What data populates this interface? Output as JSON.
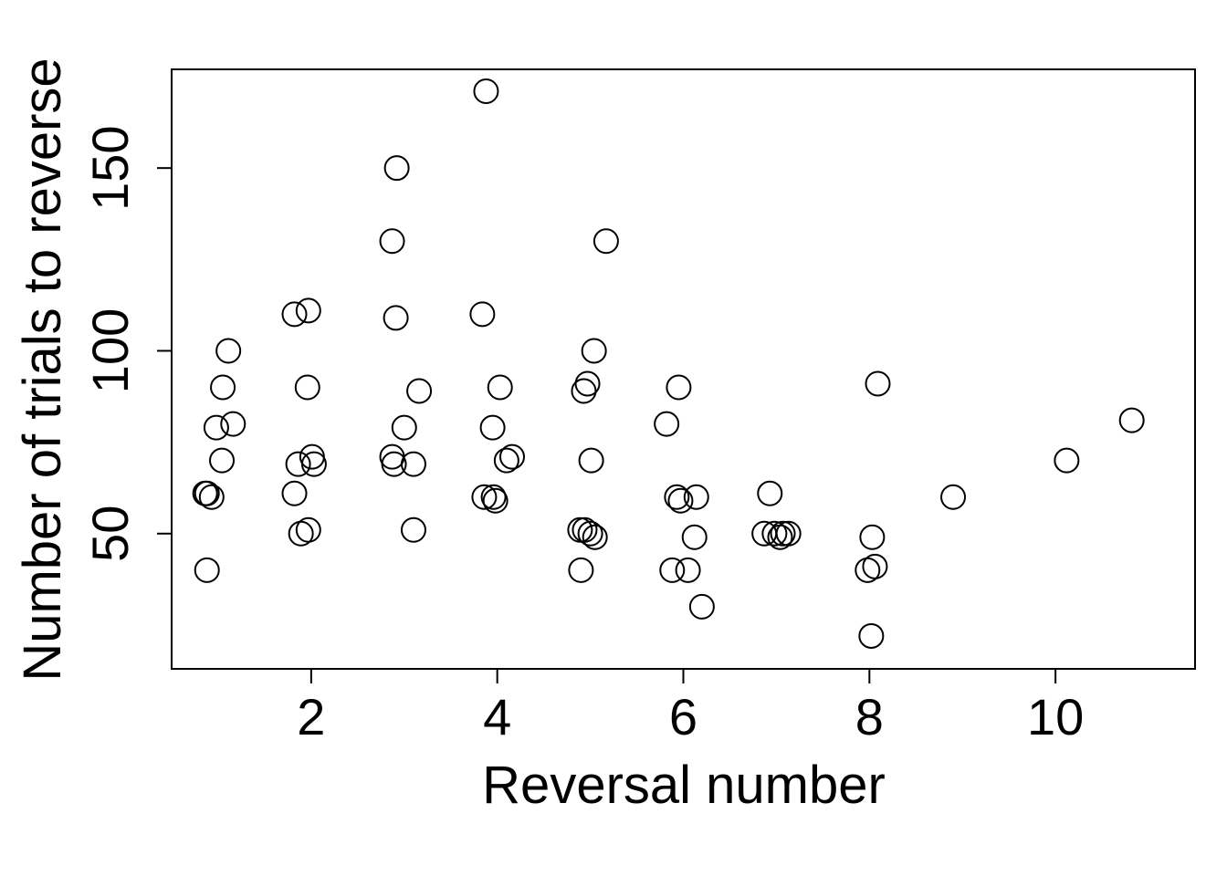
{
  "chart_data": {
    "type": "scatter",
    "title": "",
    "xlabel": "Reversal number",
    "ylabel": "Number of trials to reverse",
    "xlim": [
      0.5,
      11.5
    ],
    "ylim": [
      13,
      177
    ],
    "xticks": [
      2,
      4,
      6,
      8,
      10
    ],
    "yticks": [
      50,
      100,
      150
    ],
    "grid": false,
    "legend": "none",
    "marker": "open-circle",
    "points": [
      {
        "x": 0.86,
        "y": 61
      },
      {
        "x": 0.88,
        "y": 61
      },
      {
        "x": 0.93,
        "y": 60
      },
      {
        "x": 0.98,
        "y": 79
      },
      {
        "x": 1.04,
        "y": 70
      },
      {
        "x": 1.05,
        "y": 90
      },
      {
        "x": 1.11,
        "y": 100
      },
      {
        "x": 1.16,
        "y": 80
      },
      {
        "x": 0.88,
        "y": 40
      },
      {
        "x": 1.82,
        "y": 110
      },
      {
        "x": 1.82,
        "y": 61
      },
      {
        "x": 1.86,
        "y": 69
      },
      {
        "x": 1.89,
        "y": 50
      },
      {
        "x": 1.96,
        "y": 90
      },
      {
        "x": 1.97,
        "y": 111
      },
      {
        "x": 1.97,
        "y": 51
      },
      {
        "x": 2.01,
        "y": 71
      },
      {
        "x": 2.03,
        "y": 69
      },
      {
        "x": 2.87,
        "y": 130
      },
      {
        "x": 2.87,
        "y": 71
      },
      {
        "x": 2.89,
        "y": 69
      },
      {
        "x": 2.91,
        "y": 109
      },
      {
        "x": 2.92,
        "y": 150
      },
      {
        "x": 3.0,
        "y": 79
      },
      {
        "x": 3.1,
        "y": 69
      },
      {
        "x": 3.1,
        "y": 51
      },
      {
        "x": 3.16,
        "y": 89
      },
      {
        "x": 3.84,
        "y": 110
      },
      {
        "x": 3.86,
        "y": 60
      },
      {
        "x": 3.88,
        "y": 171
      },
      {
        "x": 3.95,
        "y": 79
      },
      {
        "x": 3.96,
        "y": 60
      },
      {
        "x": 3.98,
        "y": 59
      },
      {
        "x": 4.03,
        "y": 90
      },
      {
        "x": 4.1,
        "y": 70
      },
      {
        "x": 4.16,
        "y": 71
      },
      {
        "x": 4.89,
        "y": 51
      },
      {
        "x": 4.93,
        "y": 89
      },
      {
        "x": 4.94,
        "y": 51
      },
      {
        "x": 4.97,
        "y": 91
      },
      {
        "x": 5.0,
        "y": 50
      },
      {
        "x": 5.01,
        "y": 70
      },
      {
        "x": 5.04,
        "y": 100
      },
      {
        "x": 5.05,
        "y": 49
      },
      {
        "x": 5.17,
        "y": 130
      },
      {
        "x": 4.9,
        "y": 40
      },
      {
        "x": 5.82,
        "y": 80
      },
      {
        "x": 5.88,
        "y": 40
      },
      {
        "x": 5.93,
        "y": 60
      },
      {
        "x": 5.95,
        "y": 90
      },
      {
        "x": 5.97,
        "y": 59
      },
      {
        "x": 6.05,
        "y": 40
      },
      {
        "x": 6.12,
        "y": 49
      },
      {
        "x": 6.14,
        "y": 60
      },
      {
        "x": 6.2,
        "y": 30
      },
      {
        "x": 6.87,
        "y": 50
      },
      {
        "x": 6.93,
        "y": 61
      },
      {
        "x": 6.98,
        "y": 50
      },
      {
        "x": 7.04,
        "y": 49
      },
      {
        "x": 7.07,
        "y": 50
      },
      {
        "x": 7.13,
        "y": 50
      },
      {
        "x": 7.98,
        "y": 40
      },
      {
        "x": 8.02,
        "y": 22
      },
      {
        "x": 8.03,
        "y": 49
      },
      {
        "x": 8.06,
        "y": 41
      },
      {
        "x": 8.09,
        "y": 91
      },
      {
        "x": 8.9,
        "y": 60
      },
      {
        "x": 10.12,
        "y": 70
      },
      {
        "x": 10.82,
        "y": 81
      }
    ]
  }
}
